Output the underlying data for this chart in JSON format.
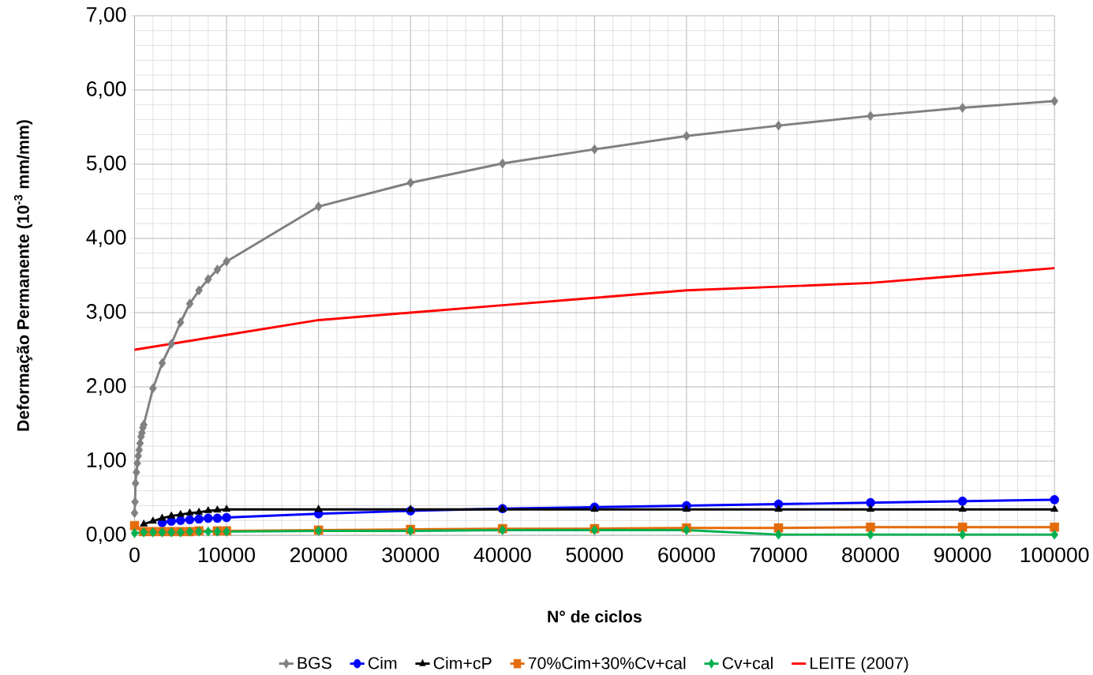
{
  "chart_data": {
    "type": "line",
    "xlabel": "N° de ciclos",
    "ylabel": "Deformação Permanente (10$^{-3}$ mm/mm)",
    "xlim": [
      0,
      100000
    ],
    "ylim": [
      0,
      7
    ],
    "xticks": [
      0,
      10000,
      20000,
      30000,
      40000,
      50000,
      60000,
      70000,
      80000,
      90000,
      100000
    ],
    "yticks": [
      {
        "value": 0,
        "label": "0,00"
      },
      {
        "value": 1,
        "label": "1,00"
      },
      {
        "value": 2,
        "label": "2,00"
      },
      {
        "value": 3,
        "label": "3,00"
      },
      {
        "value": 4,
        "label": "4,00"
      },
      {
        "value": 5,
        "label": "5,00"
      },
      {
        "value": 6,
        "label": "6,00"
      },
      {
        "value": 7,
        "label": "7,00"
      }
    ],
    "grid": true,
    "legend": "bottom",
    "line_style": "solid",
    "series": [
      {
        "name": "BGS",
        "color": "#808080",
        "marker": "diamond",
        "x": [
          0,
          50,
          100,
          200,
          300,
          400,
          500,
          600,
          700,
          800,
          900,
          1000,
          2000,
          3000,
          4000,
          5000,
          6000,
          7000,
          8000,
          9000,
          10000,
          20000,
          30000,
          40000,
          50000,
          60000,
          70000,
          80000,
          90000,
          100000
        ],
        "values": [
          0.3,
          0.45,
          0.7,
          0.85,
          0.97,
          1.07,
          1.15,
          1.24,
          1.33,
          1.38,
          1.45,
          1.49,
          1.98,
          2.32,
          2.58,
          2.87,
          3.12,
          3.3,
          3.45,
          3.58,
          3.69,
          4.43,
          4.75,
          5.01,
          5.2,
          5.38,
          5.52,
          5.65,
          5.76,
          5.85
        ]
      },
      {
        "name": "Cim",
        "color": "#0000ff",
        "marker": "circle",
        "x": [
          3000,
          4000,
          5000,
          6000,
          7000,
          8000,
          9000,
          10000,
          20000,
          30000,
          40000,
          50000,
          60000,
          70000,
          80000,
          90000,
          100000
        ],
        "values": [
          0.17,
          0.19,
          0.2,
          0.21,
          0.22,
          0.23,
          0.23,
          0.24,
          0.29,
          0.33,
          0.36,
          0.38,
          0.4,
          0.42,
          0.44,
          0.46,
          0.48
        ]
      },
      {
        "name": "Cim+cP",
        "color": "#000000",
        "marker": "triangle",
        "x": [
          1000,
          2000,
          3000,
          4000,
          5000,
          6000,
          7000,
          8000,
          9000,
          10000,
          20000,
          30000,
          40000,
          50000,
          60000,
          70000,
          80000,
          90000,
          100000
        ],
        "values": [
          0.15,
          0.19,
          0.23,
          0.26,
          0.28,
          0.3,
          0.31,
          0.33,
          0.34,
          0.35,
          0.35,
          0.35,
          0.35,
          0.35,
          0.35,
          0.35,
          0.35,
          0.35,
          0.35
        ]
      },
      {
        "name": "70%Cim+30%Cv+cal",
        "color": "#e46c0a",
        "marker": "square",
        "x": [
          0,
          1000,
          2000,
          3000,
          4000,
          5000,
          6000,
          7000,
          8000,
          9000,
          10000,
          20000,
          30000,
          40000,
          50000,
          60000,
          70000,
          80000,
          90000,
          100000
        ],
        "values": [
          0.13,
          0.05,
          0.05,
          0.05,
          0.05,
          0.05,
          0.05,
          0.06,
          null,
          0.06,
          0.06,
          0.07,
          0.08,
          0.09,
          0.09,
          0.1,
          0.1,
          0.11,
          0.11,
          0.11
        ]
      },
      {
        "name": "Cv+cal",
        "color": "#00b050",
        "marker": "diamond",
        "x": [
          0,
          1000,
          2000,
          3000,
          4000,
          5000,
          6000,
          7000,
          8000,
          9000,
          10000,
          20000,
          30000,
          40000,
          50000,
          60000,
          70000,
          80000,
          90000,
          100000
        ],
        "values": [
          0.03,
          0.04,
          0.04,
          0.04,
          0.04,
          0.04,
          0.05,
          0.05,
          0.05,
          0.05,
          0.05,
          0.06,
          0.06,
          0.07,
          0.07,
          0.07,
          0.01,
          0.01,
          0.01,
          0.01
        ]
      },
      {
        "name": "LEITE (2007)",
        "color": "#ff0000",
        "marker": "none",
        "x": [
          0,
          10000,
          20000,
          30000,
          40000,
          50000,
          60000,
          70000,
          80000,
          90000,
          100000
        ],
        "values": [
          2.5,
          2.7,
          2.9,
          3.0,
          3.1,
          3.2,
          3.3,
          3.35,
          3.4,
          3.5,
          3.6
        ]
      }
    ]
  }
}
